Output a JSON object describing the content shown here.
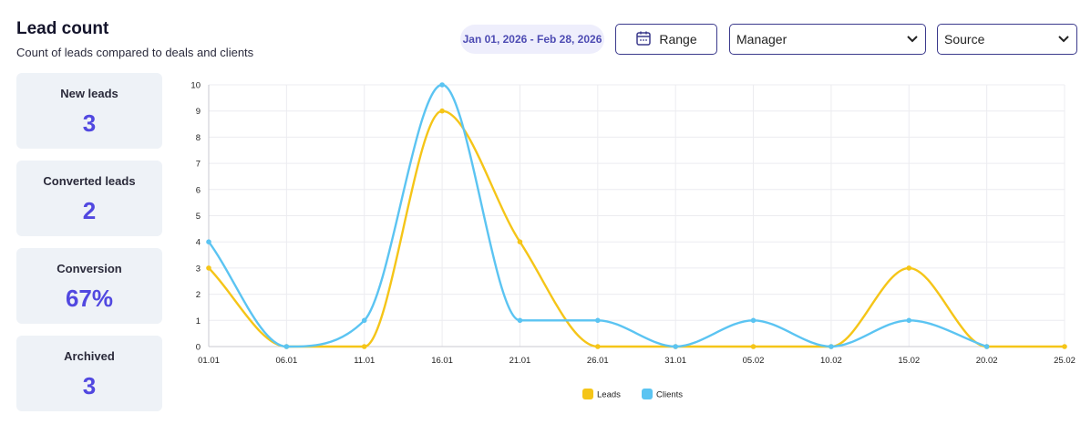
{
  "header": {
    "title": "Lead count",
    "subtitle": "Count of leads compared to deals and clients"
  },
  "filters": {
    "date_range": "Jan 01, 2026 - Feb 28, 2026",
    "range_button": "Range",
    "range_icon": "calendar-icon",
    "manager_select": "Manager",
    "source_select": "Source",
    "dropdown_icon": "chevron-down-icon"
  },
  "stats": [
    {
      "label": "New leads",
      "value": "3"
    },
    {
      "label": "Converted leads",
      "value": "2"
    },
    {
      "label": "Conversion",
      "value": "67%"
    },
    {
      "label": "Archived",
      "value": "3"
    }
  ],
  "colors": {
    "accent": "#5148e0",
    "leads": "#f5c518",
    "clients": "#5bc4f2"
  },
  "chart_data": {
    "type": "line",
    "title": "",
    "xlabel": "",
    "ylabel": "",
    "categories": [
      "01.01",
      "06.01",
      "11.01",
      "16.01",
      "21.01",
      "26.01",
      "31.01",
      "05.02",
      "10.02",
      "15.02",
      "20.02",
      "25.02"
    ],
    "ylim": [
      0,
      10
    ],
    "yticks": [
      0,
      1,
      2,
      3,
      4,
      5,
      6,
      7,
      8,
      9,
      10
    ],
    "grid": true,
    "legend": "bottom-center",
    "series": [
      {
        "name": "Leads",
        "color": "#f5c518",
        "values": [
          3,
          0,
          0,
          9,
          4,
          0,
          0,
          0,
          0,
          3,
          0,
          0
        ]
      },
      {
        "name": "Clients",
        "color": "#5bc4f2",
        "values": [
          4,
          0,
          1,
          10,
          1,
          1,
          0,
          1,
          0,
          1,
          0,
          null
        ]
      }
    ]
  }
}
